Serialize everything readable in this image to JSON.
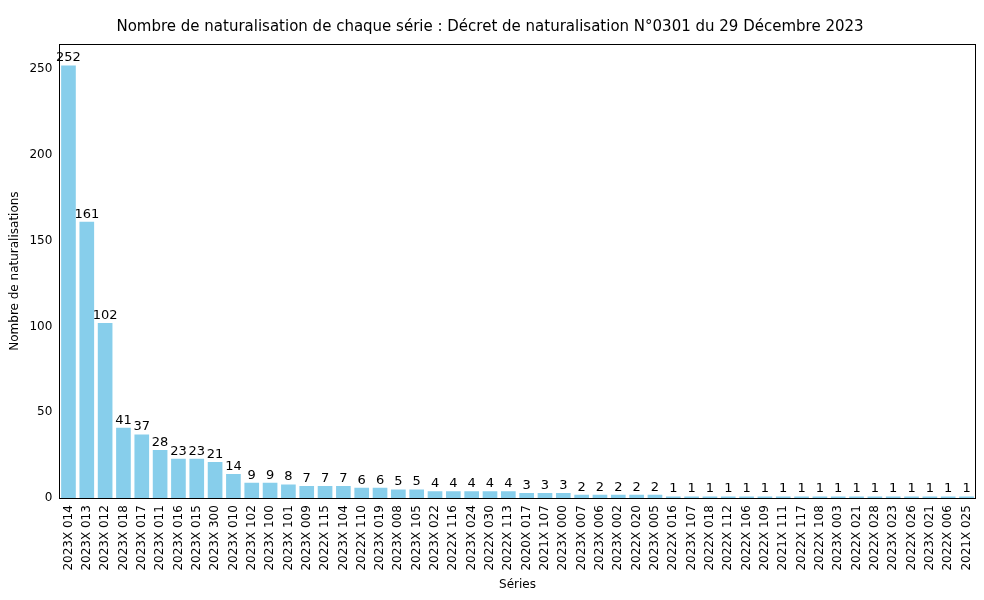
{
  "chart_data": {
    "type": "bar",
    "title": "Nombre de naturalisation de chaque série : Décret de naturalisation N°0301 du 29 Décembre 2023",
    "x_label": "Séries",
    "y_label": "Nombre de naturalisations",
    "categories": [
      "2023X 014",
      "2023X 013",
      "2023X 012",
      "2023X 018",
      "2023X 017",
      "2023X 011",
      "2023X 016",
      "2023X 015",
      "2023X 300",
      "2023X 010",
      "2023X 102",
      "2023X 100",
      "2023X 101",
      "2023X 009",
      "2022X 115",
      "2023X 104",
      "2022X 110",
      "2023X 019",
      "2023X 008",
      "2023X 105",
      "2023X 022",
      "2022X 116",
      "2023X 024",
      "2022X 030",
      "2022X 113",
      "2020X 017",
      "2021X 107",
      "2023X 000",
      "2023X 007",
      "2023X 006",
      "2023X 002",
      "2022X 020",
      "2023X 005",
      "2022X 016",
      "2023X 107",
      "2022X 018",
      "2022X 112",
      "2022X 106",
      "2022X 109",
      "2021X 111",
      "2022X 117",
      "2022X 108",
      "2023X 003",
      "2022X 021",
      "2022X 028",
      "2023X 023",
      "2022X 026",
      "2023X 021",
      "2022X 006",
      "2021X 025"
    ],
    "values": [
      252,
      161,
      102,
      41,
      37,
      28,
      23,
      23,
      21,
      14,
      9,
      9,
      8,
      7,
      7,
      7,
      6,
      6,
      5,
      5,
      4,
      4,
      4,
      4,
      4,
      3,
      3,
      3,
      2,
      2,
      2,
      2,
      2,
      1,
      1,
      1,
      1,
      1,
      1,
      1,
      1,
      1,
      1,
      1,
      1,
      1,
      1,
      1,
      1,
      1
    ],
    "color": "#87ceeb",
    "ylim": [
      0,
      264.6
    ],
    "yticks": [
      0,
      50,
      100,
      150,
      200,
      250
    ],
    "grid": false,
    "data_labels": true
  }
}
